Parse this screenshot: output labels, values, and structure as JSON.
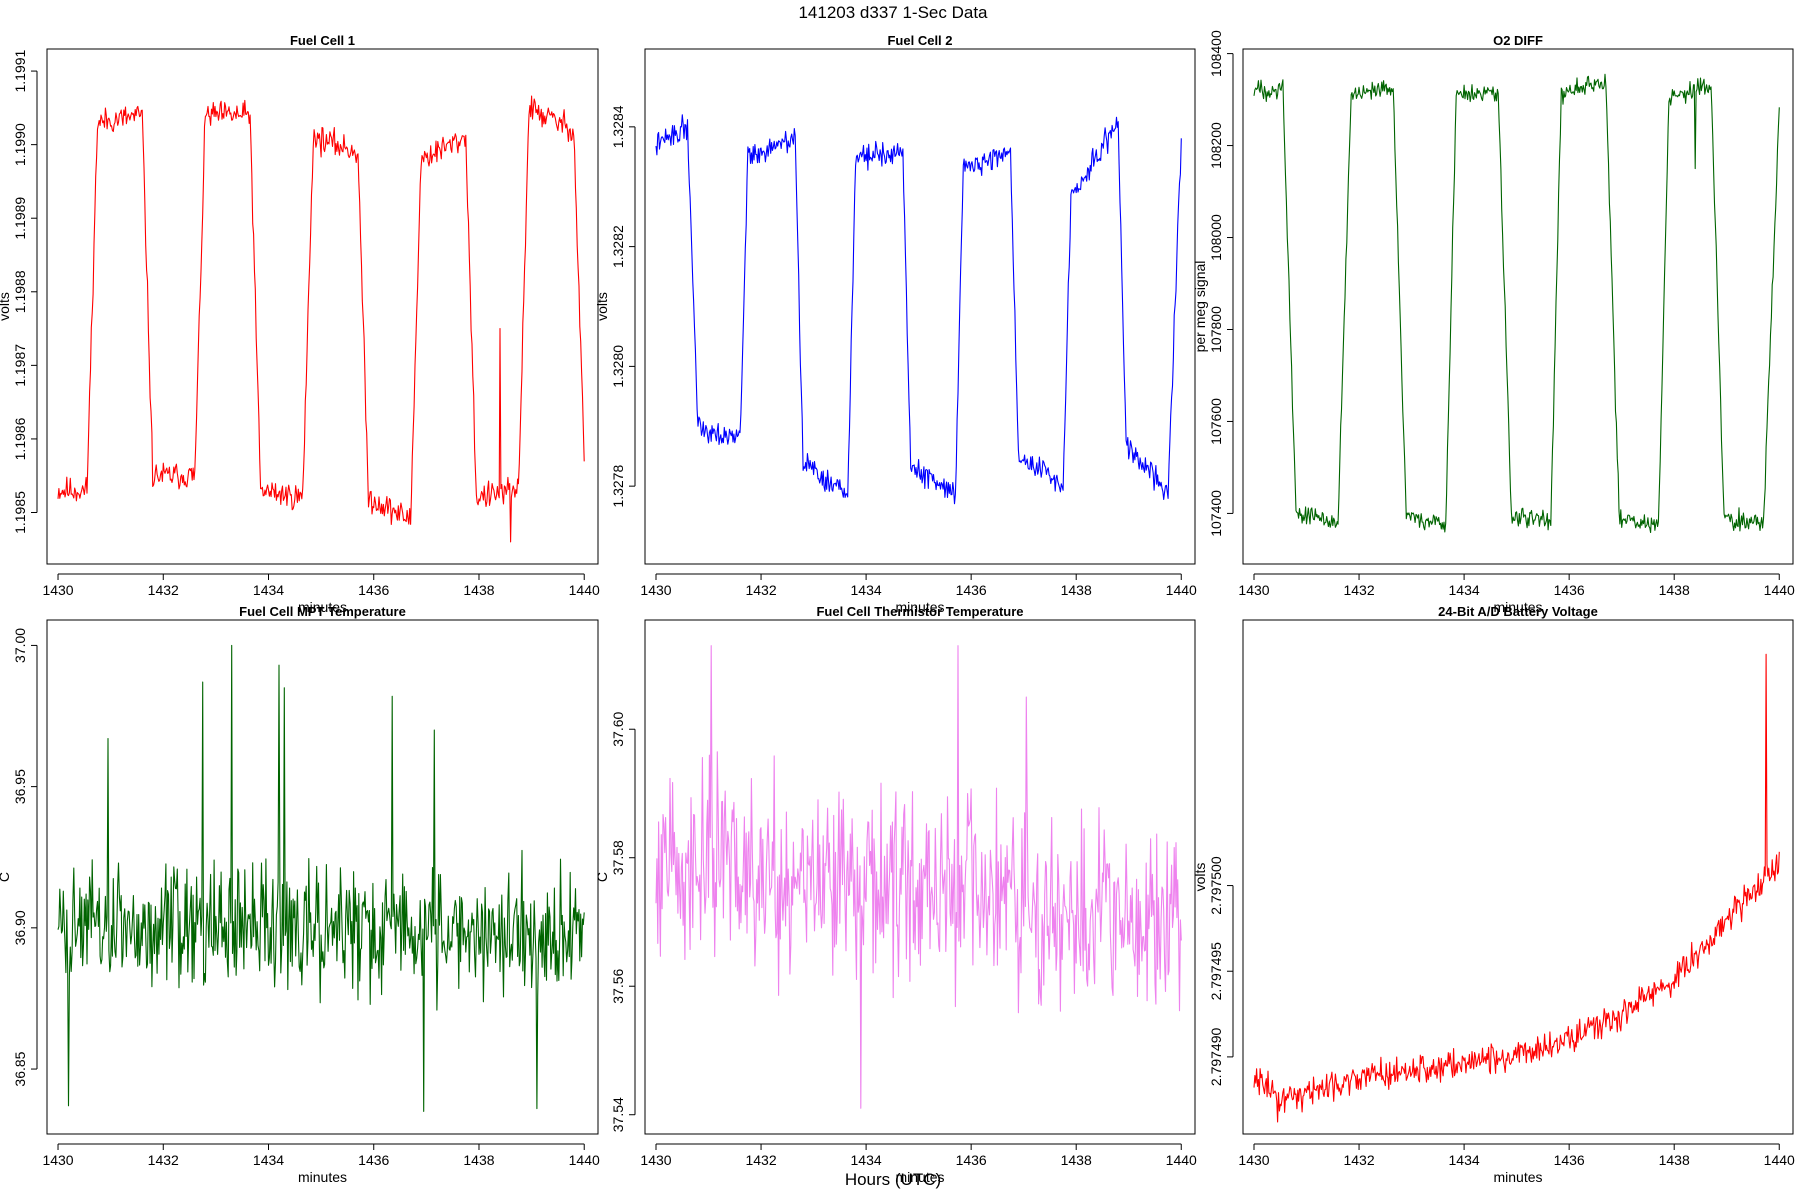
{
  "figure": {
    "title": "141203   d337   1-Sec Data",
    "xlabel": "Hours (UTC)"
  },
  "chart_data": [
    {
      "type": "line",
      "title": "Fuel Cell 1",
      "xlabel": "minutes",
      "ylabel": "volts",
      "color": "#ff0000",
      "xlim": [
        1430,
        1440
      ],
      "xticks": [
        1430,
        1432,
        1434,
        1436,
        1438,
        1440
      ],
      "ylim": [
        1.19843,
        1.19913
      ],
      "yticks": [
        1.1985,
        1.1986,
        1.1987,
        1.1988,
        1.1989,
        1.199,
        1.1991
      ],
      "ytick_labels": [
        "1.1985",
        "1.1986",
        "1.1987",
        "1.1988",
        "1.1989",
        "1.1990",
        "1.1991"
      ],
      "x_start": 1430,
      "x_end": 1440,
      "key_points": [
        [
          1430,
          1.19853
        ],
        [
          1430.55,
          1.19853
        ],
        [
          1430.75,
          1.19903
        ],
        [
          1431.6,
          1.19904
        ],
        [
          1431.8,
          1.19855
        ],
        [
          1432.6,
          1.19855
        ],
        [
          1432.8,
          1.19904
        ],
        [
          1433.65,
          1.19904
        ],
        [
          1433.85,
          1.19853
        ],
        [
          1434.65,
          1.19852
        ],
        [
          1434.85,
          1.19901
        ],
        [
          1435.7,
          1.19899
        ],
        [
          1435.9,
          1.19852
        ],
        [
          1436.7,
          1.19849
        ],
        [
          1436.9,
          1.19898
        ],
        [
          1437.75,
          1.19901
        ],
        [
          1437.95,
          1.19852
        ],
        [
          1438.75,
          1.19853
        ],
        [
          1438.95,
          1.19905
        ],
        [
          1439.8,
          1.19902
        ],
        [
          1440,
          1.19858
        ]
      ],
      "noise": 1.2e-05,
      "seed": 11,
      "spikes": [
        [
          1438.4,
          1.19875
        ],
        [
          1438.6,
          1.19846
        ]
      ]
    },
    {
      "type": "line",
      "title": "Fuel Cell 2",
      "xlabel": "minutes",
      "ylabel": "volts",
      "color": "#0000ff",
      "xlim": [
        1430,
        1440
      ],
      "xticks": [
        1430,
        1432,
        1434,
        1436,
        1438,
        1440
      ],
      "ylim": [
        1.32767,
        1.32853
      ],
      "yticks": [
        1.3278,
        1.328,
        1.3282,
        1.3284
      ],
      "ytick_labels": [
        "1.3278",
        "1.3280",
        "1.3282",
        "1.3284"
      ],
      "x_start": 1430,
      "x_end": 1440,
      "key_points": [
        [
          1430,
          1.32837
        ],
        [
          1430.6,
          1.3284
        ],
        [
          1430.8,
          1.3279
        ],
        [
          1431.6,
          1.32788
        ],
        [
          1431.75,
          1.32835
        ],
        [
          1432.65,
          1.32838
        ],
        [
          1432.8,
          1.32784
        ],
        [
          1433.65,
          1.32778
        ],
        [
          1433.8,
          1.32835
        ],
        [
          1434.7,
          1.32836
        ],
        [
          1434.85,
          1.32783
        ],
        [
          1435.7,
          1.32779
        ],
        [
          1435.85,
          1.32833
        ],
        [
          1436.75,
          1.32836
        ],
        [
          1436.9,
          1.32785
        ],
        [
          1437.75,
          1.3278
        ],
        [
          1437.9,
          1.32828
        ],
        [
          1438.8,
          1.32841
        ],
        [
          1438.95,
          1.32787
        ],
        [
          1439.75,
          1.32779
        ],
        [
          1440,
          1.32838
        ]
      ],
      "noise": 1.3e-05,
      "seed": 22
    },
    {
      "type": "line",
      "title": "O2 DIFF",
      "xlabel": "minutes",
      "ylabel": "per meg signal",
      "color": "#006400",
      "xlim": [
        1430,
        1440
      ],
      "xticks": [
        1430,
        1432,
        1434,
        1436,
        1438,
        1440
      ],
      "ylim": [
        107290,
        108410
      ],
      "yticks": [
        107400,
        107600,
        107800,
        108000,
        108200,
        108400
      ],
      "ytick_labels": [
        "107400",
        "107600",
        "107800",
        "108000",
        "108200",
        "108400"
      ],
      "x_start": 1430,
      "x_end": 1440,
      "key_points": [
        [
          1430,
          108320
        ],
        [
          1430.55,
          108325
        ],
        [
          1430.8,
          107400
        ],
        [
          1431.6,
          107385
        ],
        [
          1431.85,
          108310
        ],
        [
          1432.65,
          108320
        ],
        [
          1432.9,
          107395
        ],
        [
          1433.65,
          107375
        ],
        [
          1433.85,
          108310
        ],
        [
          1434.65,
          108315
        ],
        [
          1434.9,
          107395
        ],
        [
          1435.65,
          107380
        ],
        [
          1435.85,
          108320
        ],
        [
          1436.7,
          108340
        ],
        [
          1436.95,
          107395
        ],
        [
          1437.7,
          107370
        ],
        [
          1437.9,
          108300
        ],
        [
          1438.7,
          108335
        ],
        [
          1438.95,
          107395
        ],
        [
          1439.7,
          107375
        ],
        [
          1440,
          108290
        ]
      ],
      "noise": 14,
      "seed": 33,
      "spikes": [
        [
          1438.4,
          108150
        ]
      ]
    },
    {
      "type": "line",
      "title": "Fuel Cell MPT Temperature",
      "xlabel": "minutes",
      "ylabel": "C",
      "color": "#006400",
      "xlim": [
        1430,
        1440
      ],
      "xticks": [
        1430,
        1432,
        1434,
        1436,
        1438,
        1440
      ],
      "ylim": [
        36.827,
        37.009
      ],
      "yticks": [
        36.85,
        36.9,
        36.95,
        37.0
      ],
      "ytick_labels": [
        "36.85",
        "36.90",
        "36.95",
        "37.00"
      ],
      "x_start": 1430,
      "x_end": 1440,
      "key_points": [
        [
          1430,
          36.9
        ],
        [
          1440,
          36.899
        ]
      ],
      "noise": 0.014,
      "seed": 44,
      "spikes": [
        [
          1430.2,
          36.837
        ],
        [
          1430.95,
          36.967
        ],
        [
          1432.75,
          36.987
        ],
        [
          1433.3,
          37.0
        ],
        [
          1434.2,
          36.993
        ],
        [
          1434.3,
          36.985
        ],
        [
          1436.35,
          36.982
        ],
        [
          1437.15,
          36.97
        ],
        [
          1436.95,
          36.835
        ],
        [
          1439.1,
          36.836
        ]
      ]
    },
    {
      "type": "line",
      "title": "Fuel Cell Thermistor Temperature",
      "xlabel": "minutes",
      "ylabel": "C",
      "color": "#ee82ee",
      "xlim": [
        1430,
        1440
      ],
      "xticks": [
        1430,
        1432,
        1434,
        1436,
        1438,
        1440
      ],
      "ylim": [
        37.537,
        37.617
      ],
      "yticks": [
        37.54,
        37.56,
        37.58,
        37.6
      ],
      "ytick_labels": [
        "37.54",
        "37.56",
        "37.58",
        "37.60"
      ],
      "x_start": 1430,
      "x_end": 1440,
      "key_points": [
        [
          1430,
          37.58
        ],
        [
          1435,
          37.575
        ],
        [
          1440,
          37.568
        ]
      ],
      "noise": 0.0095,
      "seed": 55,
      "spikes": [
        [
          1431.05,
          37.613
        ],
        [
          1433.9,
          37.541
        ],
        [
          1435.75,
          37.613
        ],
        [
          1437.05,
          37.605
        ]
      ]
    },
    {
      "type": "line",
      "title": "24-Bit A/D Battery Voltage",
      "xlabel": "minutes",
      "ylabel": "volts",
      "color": "#ff0000",
      "xlim": [
        1430,
        1440
      ],
      "xticks": [
        1430,
        1432,
        1434,
        1436,
        1438,
        1440
      ],
      "ylim": [
        2.7974855,
        2.7975155
      ],
      "yticks": [
        2.79749,
        2.797495,
        2.7975
      ],
      "ytick_labels": [
        "2.797490",
        "2.797495",
        "2.797500"
      ],
      "x_start": 1430,
      "x_end": 1440,
      "key_points": [
        [
          1430,
          2.797489
        ],
        [
          1430.5,
          2.7974875
        ],
        [
          1431,
          2.797488
        ],
        [
          1432,
          2.7974888
        ],
        [
          1433,
          2.7974892
        ],
        [
          1434,
          2.7974896
        ],
        [
          1435,
          2.7974902
        ],
        [
          1436,
          2.797491
        ],
        [
          1437,
          2.7974925
        ],
        [
          1438,
          2.7974945
        ],
        [
          1439,
          2.797498
        ],
        [
          1440,
          2.7975015
        ]
      ],
      "noise": 5.5e-07,
      "seed": 66,
      "spikes": [
        [
          1430.45,
          2.7974862
        ],
        [
          1439.75,
          2.7975135
        ]
      ]
    }
  ]
}
